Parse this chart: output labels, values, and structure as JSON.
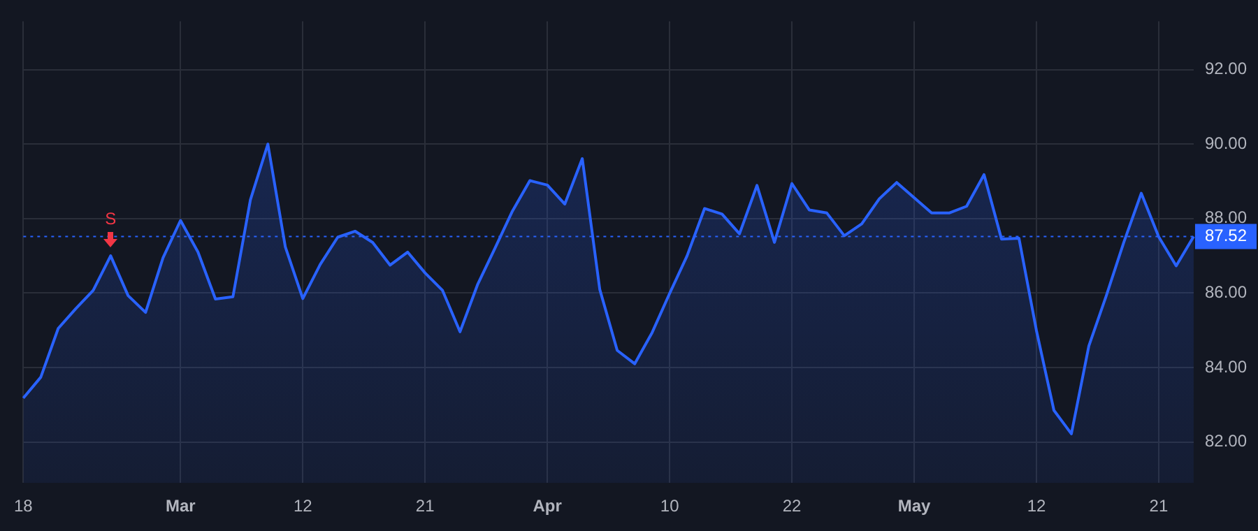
{
  "chart_data": {
    "type": "area",
    "categories": [
      "18",
      null,
      null,
      null,
      null,
      null,
      null,
      null,
      null,
      "Mar",
      null,
      null,
      null,
      null,
      null,
      null,
      "12",
      null,
      null,
      null,
      null,
      null,
      null,
      "21",
      null,
      null,
      null,
      null,
      null,
      null,
      "Apr",
      null,
      null,
      null,
      null,
      null,
      null,
      "10",
      null,
      null,
      null,
      null,
      null,
      null,
      "22",
      null,
      null,
      null,
      null,
      null,
      null,
      "May",
      null,
      null,
      null,
      null,
      null,
      null,
      "12",
      null,
      null,
      null,
      null,
      null,
      null,
      "21",
      null,
      null
    ],
    "series": [
      {
        "color": "#2962ff",
        "values": [
          83.18,
          83.74,
          85.05,
          85.58,
          86.07,
          87.0,
          85.93,
          85.48,
          86.95,
          87.95,
          87.1,
          85.84,
          85.9,
          88.5,
          90.0,
          87.24,
          85.85,
          86.77,
          87.5,
          87.66,
          87.36,
          86.75,
          87.1,
          86.54,
          86.07,
          84.96,
          86.22,
          87.2,
          88.2,
          89.02,
          88.9,
          88.39,
          89.61,
          86.1,
          84.46,
          84.1,
          84.94,
          85.99,
          87.0,
          88.27,
          88.12,
          87.59,
          88.89,
          87.36,
          88.94,
          88.23,
          88.15,
          87.54,
          87.86,
          88.53,
          88.97,
          88.56,
          88.15,
          88.15,
          88.33,
          89.18,
          87.45,
          87.47,
          84.99,
          82.85,
          82.22,
          84.58,
          85.93,
          87.36,
          88.68,
          87.51,
          86.73,
          87.52
        ]
      }
    ],
    "ylim": [
      80.9,
      93.3
    ],
    "yticks": [
      {
        "value": 82,
        "label": "82.00"
      },
      {
        "value": 84,
        "label": "84.00"
      },
      {
        "value": 86,
        "label": "86.00"
      },
      {
        "value": 88,
        "label": "88.00"
      },
      {
        "value": 90,
        "label": "90.00"
      },
      {
        "value": 92,
        "label": "92.00"
      }
    ],
    "ref_lines": [
      {
        "axis": "y",
        "value": 87.52,
        "label": "87.52",
        "color": "#2962ff",
        "line_style": "dotted"
      }
    ],
    "annotations": [
      {
        "text": "S",
        "y": 87.0
      }
    ],
    "grid": true,
    "legend": false,
    "marker": "none",
    "line_style": "solid"
  }
}
